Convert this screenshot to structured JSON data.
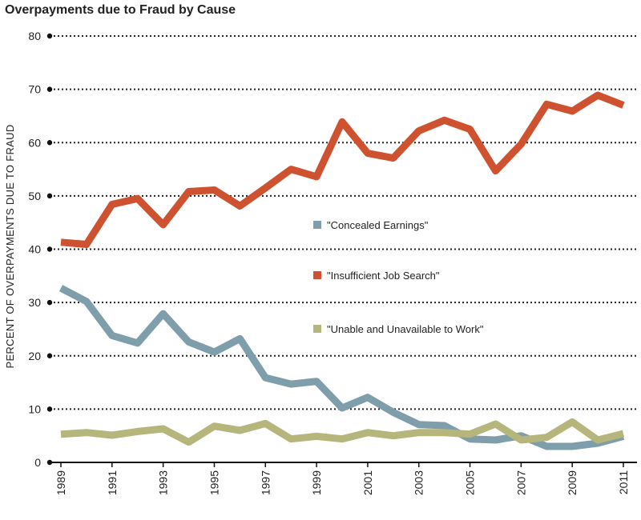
{
  "chart_data": {
    "type": "line",
    "title": "Overpayments due to Fraud by Cause",
    "xlabel": "",
    "ylabel": "PERCENT OF OVERPAYMENTS DUE TO FRAUD",
    "ylim": [
      0,
      80
    ],
    "yticks": [
      0,
      10,
      20,
      30,
      40,
      50,
      60,
      70,
      80
    ],
    "xlim": [
      1989,
      2011
    ],
    "xticks": [
      1989,
      1991,
      1993,
      1995,
      1997,
      1999,
      2001,
      2003,
      2005,
      2007,
      2009,
      2011
    ],
    "grid": true,
    "legend": "center-right",
    "x": [
      1989,
      1990,
      1991,
      1992,
      1993,
      1994,
      1995,
      1996,
      1997,
      1998,
      1999,
      2000,
      2001,
      2002,
      2003,
      2004,
      2005,
      2006,
      2007,
      2008,
      2009,
      2010,
      2011
    ],
    "series": [
      {
        "name": "\"Concealed Earnings\"",
        "color": "#7e9eab",
        "values": [
          32.7,
          30.2,
          23.8,
          22.4,
          27.9,
          22.6,
          20.7,
          23.2,
          15.9,
          14.7,
          15.2,
          10.2,
          12.2,
          9.4,
          7.1,
          6.9,
          4.4,
          4.2,
          5.0,
          3.0,
          3.0,
          3.6,
          4.9
        ]
      },
      {
        "name": "\"Insufficient Job Search\"",
        "color": "#cf5230",
        "values": [
          41.3,
          40.9,
          48.4,
          49.5,
          44.6,
          50.8,
          51.1,
          48.1,
          51.5,
          55.0,
          53.6,
          63.9,
          58.0,
          57.1,
          62.2,
          64.2,
          62.5,
          54.7,
          59.7,
          67.2,
          65.9,
          68.9,
          67.0
        ]
      },
      {
        "name": "\"Unable and Unavailable to Work\"",
        "color": "#b6b57c",
        "values": [
          5.3,
          5.6,
          5.1,
          5.8,
          6.3,
          3.8,
          6.8,
          6.0,
          7.3,
          4.4,
          4.9,
          4.4,
          5.6,
          5.0,
          5.6,
          5.6,
          5.3,
          7.2,
          4.2,
          4.7,
          7.6,
          4.2,
          5.4
        ]
      }
    ]
  }
}
